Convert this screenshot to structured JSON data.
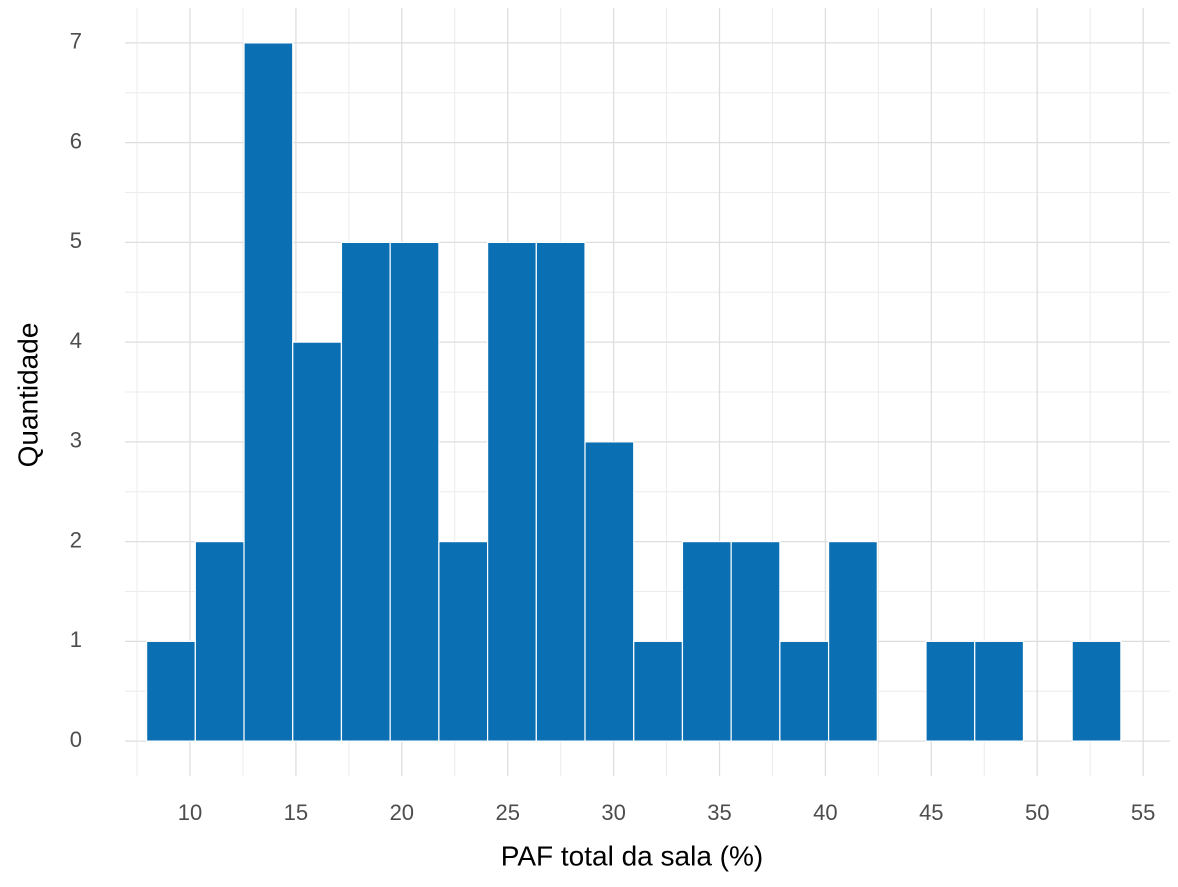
{
  "chart_data": {
    "type": "histogram",
    "x_label": "PAF total da sala (%)",
    "y_label": "Quantidade",
    "bins": [
      7.95,
      10.25,
      12.55,
      14.85,
      17.15,
      19.45,
      21.75,
      24.05,
      26.35,
      28.65,
      30.95,
      33.25,
      35.55,
      37.85,
      40.15,
      42.45,
      44.75,
      47.05,
      49.35,
      51.65,
      53.95
    ],
    "values": [
      1,
      2,
      7,
      4,
      5,
      5,
      2,
      5,
      5,
      3,
      1,
      2,
      2,
      1,
      2,
      0,
      1,
      1,
      0,
      1
    ],
    "color": "#0b70b3",
    "xlim": [
      6.93,
      56.27
    ],
    "xticks": [
      10,
      15,
      20,
      25,
      30,
      35,
      40,
      45,
      50,
      55
    ],
    "ylim": [
      -0.35,
      7.35
    ],
    "yticks": [
      0,
      1,
      2,
      3,
      4,
      5,
      6,
      7
    ],
    "grid": true
  }
}
